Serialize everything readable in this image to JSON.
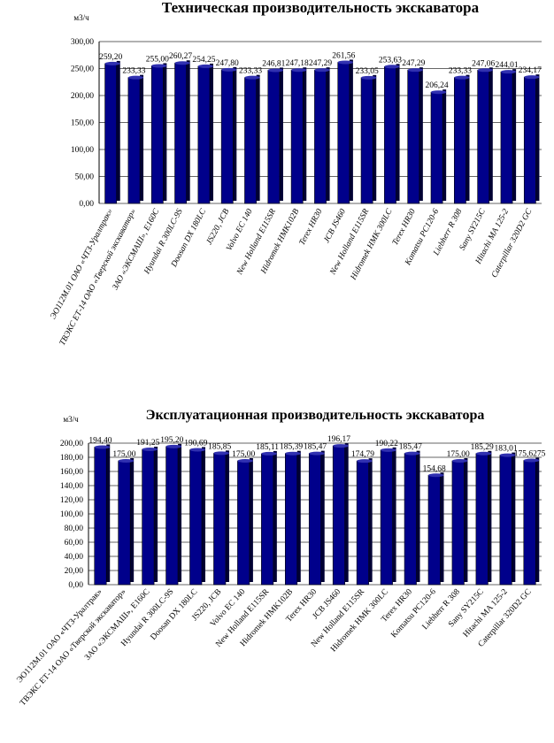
{
  "chart_data": [
    {
      "type": "bar",
      "title": "Техническая производительность экскаватора",
      "y_label": "м3/ч",
      "categories": [
        "ЭО112М.01 ОАО «ЧТЗ-Уралтрак»",
        "ТВЭКС ЕТ-14 ОАО «Тверской экскаватор»",
        "ЗАО «ЭКСМАШ», Е160С",
        "Hyundai R 300LC-9S",
        "Doosan DX 180LC",
        "JS220, JCB",
        "Volvo EC 140",
        "New Holland E115SR",
        "Hidromek HMK102B",
        "Terex HR30",
        "JCB JS460",
        "New Holland E115SR",
        "Hidromek HMK 300LC",
        "Terex HR30",
        "Komatsu PC120-6",
        "Liebherr R 308",
        "Sany SY215C",
        "Hitachi MA 125-2",
        "Caterpillar 320D2 GC"
      ],
      "values": [
        259.2,
        233.33,
        255.0,
        260.27,
        254.25,
        247.8,
        233.33,
        246.81,
        247.18,
        247.29,
        261.56,
        233.05,
        253.63,
        247.29,
        206.24,
        233.33,
        247.06,
        244.01,
        234.17
      ],
      "value_labels": [
        "259,20",
        "233,33",
        "255,00",
        "260,27",
        "254,25",
        "247,80",
        "233,33",
        "246,81",
        "247,18",
        "247,29",
        "261,56",
        "233,05",
        "253,63",
        "247,29",
        "206,24",
        "233,33",
        "247,06",
        "244,01",
        "234,17"
      ],
      "color": "#00008b",
      "ylim": [
        0,
        300
      ],
      "yticks": [
        {
          "value": 0,
          "label": "0,00"
        },
        {
          "value": 50,
          "label": "50,00"
        },
        {
          "value": 100,
          "label": "100,00"
        },
        {
          "value": 150,
          "label": "150,00"
        },
        {
          "value": 200,
          "label": "200,00"
        },
        {
          "value": 250,
          "label": "250,00"
        },
        {
          "value": 300,
          "label": "300,00"
        }
      ],
      "grid": true
    },
    {
      "type": "bar",
      "title": "Эксплуатационная производительность экскаватора",
      "y_label": "м3/ч",
      "categories": [
        "ЭО112М.01 ОАО «ЧТЗ-Уралтрак»",
        "ТВЭКС ЕТ-14 ОАО «Тверской экскаватор»",
        "ЗАО «ЭКСМАШ», Е160С",
        "Hyundai R 300LC-9S",
        "Doosan DX 180LC",
        "JS220, JCB",
        "Volvo EC 140",
        "New Holland E115SR",
        "Hidromek HMK102B",
        "Terex HR30",
        "JCB JS460",
        "New Holland E115SR",
        "Hidromek HMK 300LC",
        "Terex HR30",
        "Komatsu PC120-6",
        "Liebherr R 308",
        "Sany SY215C",
        "Hitachi MA 125-2",
        "Caterpillar 320D2 GC"
      ],
      "values": [
        194.4,
        175.0,
        191.25,
        195.2,
        190.69,
        185.85,
        175.0,
        185.11,
        185.39,
        185.47,
        196.17,
        174.79,
        190.22,
        185.47,
        154.68,
        175.0,
        185.29,
        183.01,
        175.6275
      ],
      "value_labels": [
        "194,40",
        "175,00",
        "191,25",
        "195,20",
        "190,69",
        "185,85",
        "175,00",
        "185,11",
        "185,39",
        "185,47",
        "196,17",
        "174,79",
        "190,22",
        "185,47",
        "154,68",
        "175,00",
        "185,29",
        "183,01",
        "175,6275"
      ],
      "color": "#00008b",
      "ylim": [
        0,
        200
      ],
      "yticks": [
        {
          "value": 0,
          "label": "0,00"
        },
        {
          "value": 20,
          "label": "20,00"
        },
        {
          "value": 40,
          "label": "40,00"
        },
        {
          "value": 60,
          "label": "60,00"
        },
        {
          "value": 80,
          "label": "80,00"
        },
        {
          "value": 100,
          "label": "100,00"
        },
        {
          "value": 120,
          "label": "120,00"
        },
        {
          "value": 140,
          "label": "140,00"
        },
        {
          "value": 160,
          "label": "160,00"
        },
        {
          "value": 180,
          "label": "180,00"
        },
        {
          "value": 200,
          "label": "200,00"
        }
      ],
      "grid": true
    }
  ]
}
